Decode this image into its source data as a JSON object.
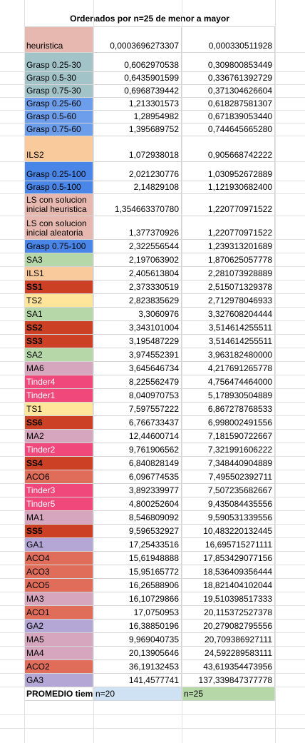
{
  "title": "Ordenados por n=25 de menor a mayor",
  "rows": [
    {
      "name": "heuristica",
      "v1": "0,0003696273307",
      "v2": "0,000330511928",
      "bg": "#e6b8af",
      "color": "#000000",
      "bold": false,
      "h": 36
    },
    {
      "name": "Grasp 0.25-30",
      "v1": "0,6062970538",
      "v2": "0,309800853449",
      "bg": "#a2c4c9",
      "color": "#000000",
      "bold": false,
      "h": 27
    },
    {
      "name": "Grasp 0.5-30",
      "v1": "0,6435901599",
      "v2": "0,336761392729",
      "bg": "#a2c4c9",
      "color": "#000000",
      "bold": false,
      "h": 18
    },
    {
      "name": "Grasp 0.75-30",
      "v1": "0,6968739442",
      "v2": "0,371304626604",
      "bg": "#a2c4c9",
      "color": "#000000",
      "bold": false,
      "h": 18
    },
    {
      "name": "Grasp 0.25-60",
      "v1": "1,213301573",
      "v2": "0,618287581307",
      "bg": "#6d9eeb",
      "color": "#000000",
      "bold": false,
      "h": 18
    },
    {
      "name": "Grasp 0.5-60",
      "v1": "1,28954982",
      "v2": "0,671839053440",
      "bg": "#6d9eeb",
      "color": "#000000",
      "bold": false,
      "h": 18
    },
    {
      "name": "Grasp 0.75-60",
      "v1": "1,395689752",
      "v2": "0,744645665280",
      "bg": "#6d9eeb",
      "color": "#000000",
      "bold": false,
      "h": 18
    },
    {
      "name": "ILS2",
      "v1": "1,072938018",
      "v2": "0,905668742222",
      "bg": "#f9cb9c",
      "color": "#000000",
      "bold": false,
      "h": 36
    },
    {
      "name": "Grasp 0.25-100",
      "v1": "2,021230776",
      "v2": "1,030952672889",
      "bg": "#4a86e8",
      "color": "#000000",
      "bold": false,
      "h": 27
    },
    {
      "name": "Grasp 0.5-100",
      "v1": "2,14829108",
      "v2": "1,121930682400",
      "bg": "#4a86e8",
      "color": "#000000",
      "bold": false,
      "h": 18
    },
    {
      "name": "LS con solucion inicial heuristica",
      "v1": "1,354663370780",
      "v2": "1,220770971522",
      "bg": "#e6b8af",
      "color": "#000000",
      "bold": false,
      "h": 31
    },
    {
      "name": "LS con solucion inicial aleatoria",
      "v1": "1,377370926",
      "v2": "1,220770971522",
      "bg": "#e6b8af",
      "color": "#000000",
      "bold": false,
      "h": 33
    },
    {
      "name": "Grasp 0.75-100",
      "v1": "2,322556544",
      "v2": "1,239313201689",
      "bg": "#4a86e8",
      "color": "#000000",
      "bold": false,
      "h": 19
    },
    {
      "name": "SA3",
      "v1": "2,197063902",
      "v2": "1,870625057778",
      "bg": "#b6d7a8",
      "color": "#000000",
      "bold": false,
      "h": 19
    },
    {
      "name": "ILS1",
      "v1": "2,405613804",
      "v2": "2,281073928889",
      "bg": "#f9cb9c",
      "color": "#000000",
      "bold": false,
      "h": 19
    },
    {
      "name": "SS1",
      "v1": "2,373330519",
      "v2": "2,515071329378",
      "bg": "#cc4125",
      "color": "#000000",
      "bold": true,
      "h": 19
    },
    {
      "name": "TS2",
      "v1": "2,823835629",
      "v2": "2,712978046933",
      "bg": "#ffe599",
      "color": "#000000",
      "bold": false,
      "h": 19
    },
    {
      "name": "SA1",
      "v1": "3,3060976",
      "v2": "3,327608204444",
      "bg": "#b6d7a8",
      "color": "#000000",
      "bold": false,
      "h": 19
    },
    {
      "name": "SS2",
      "v1": "3,343101004",
      "v2": "3,514614255511",
      "bg": "#cc4125",
      "color": "#000000",
      "bold": true,
      "h": 19
    },
    {
      "name": "SS3",
      "v1": "3,195487229",
      "v2": "3,514614255511",
      "bg": "#cc4125",
      "color": "#000000",
      "bold": true,
      "h": 19
    },
    {
      "name": "SA2",
      "v1": "3,974552391",
      "v2": "3,963182480000",
      "bg": "#b6d7a8",
      "color": "#000000",
      "bold": false,
      "h": 19
    },
    {
      "name": "MA6",
      "v1": "3,645646734",
      "v2": "4,217691265778",
      "bg": "#d5a6bd",
      "color": "#000000",
      "bold": false,
      "h": 19
    },
    {
      "name": "Tinder4",
      "v1": "8,225562479",
      "v2": "4,756474464000",
      "bg": "#f0487a",
      "color": "#ffffff",
      "bold": false,
      "h": 19
    },
    {
      "name": "Tinder1",
      "v1": "8,040970753",
      "v2": "5,178930504889",
      "bg": "#f0487a",
      "color": "#ffffff",
      "bold": false,
      "h": 19
    },
    {
      "name": "TS1",
      "v1": "7,597557222",
      "v2": "6,867278768533",
      "bg": "#ffe599",
      "color": "#000000",
      "bold": false,
      "h": 19
    },
    {
      "name": "SS6",
      "v1": "6,766733437",
      "v2": "6,998002491556",
      "bg": "#cc4125",
      "color": "#000000",
      "bold": true,
      "h": 19
    },
    {
      "name": "MA2",
      "v1": "12,44600714",
      "v2": "7,181590722667",
      "bg": "#d5a6bd",
      "color": "#000000",
      "bold": false,
      "h": 19
    },
    {
      "name": "Tinder2",
      "v1": "9,761906562",
      "v2": "7,321991606222",
      "bg": "#f0487a",
      "color": "#ffffff",
      "bold": false,
      "h": 19
    },
    {
      "name": "SS4",
      "v1": "6,840828149",
      "v2": "7,348440904889",
      "bg": "#cc4125",
      "color": "#000000",
      "bold": true,
      "h": 19
    },
    {
      "name": "ACO6",
      "v1": "6,096774535",
      "v2": "7,495502392711",
      "bg": "#e06c5a",
      "color": "#000000",
      "bold": false,
      "h": 19
    },
    {
      "name": "Tinder3",
      "v1": "3,892339977",
      "v2": "7,507235682667",
      "bg": "#f0487a",
      "color": "#ffffff",
      "bold": false,
      "h": 19
    },
    {
      "name": "Tinder5",
      "v1": "4,800252604",
      "v2": "9,435084435556",
      "bg": "#f0487a",
      "color": "#ffffff",
      "bold": false,
      "h": 19
    },
    {
      "name": "MA1",
      "v1": "8,546809092",
      "v2": "9,590531339556",
      "bg": "#d5a6bd",
      "color": "#000000",
      "bold": false,
      "h": 19
    },
    {
      "name": "SS5",
      "v1": "9,596532927",
      "v2": "10,483220132445",
      "bg": "#cc4125",
      "color": "#000000",
      "bold": true,
      "h": 19
    },
    {
      "name": "GA1",
      "v1": "17,25433516",
      "v2": "16,695715271111",
      "bg": "#b4a7d6",
      "color": "#000000",
      "bold": false,
      "h": 19
    },
    {
      "name": "ACO4",
      "v1": "15,61948888",
      "v2": "17,853429077156",
      "bg": "#e06c5a",
      "color": "#000000",
      "bold": false,
      "h": 19
    },
    {
      "name": "ACO3",
      "v1": "15,95165772",
      "v2": "18,536409356444",
      "bg": "#e06c5a",
      "color": "#000000",
      "bold": false,
      "h": 19
    },
    {
      "name": "ACO5",
      "v1": "16,26588906",
      "v2": "18,821404102044",
      "bg": "#e06c5a",
      "color": "#000000",
      "bold": false,
      "h": 19
    },
    {
      "name": "MA3",
      "v1": "16,10729866",
      "v2": "19,510398517333",
      "bg": "#d5a6bd",
      "color": "#000000",
      "bold": false,
      "h": 19
    },
    {
      "name": "ACO1",
      "v1": "17,0750953",
      "v2": "20,115372527378",
      "bg": "#e06c5a",
      "color": "#000000",
      "bold": false,
      "h": 19
    },
    {
      "name": "GA2",
      "v1": "16,38850196",
      "v2": "20,279082795556",
      "bg": "#b4a7d6",
      "color": "#000000",
      "bold": false,
      "h": 19
    },
    {
      "name": "MA5",
      "v1": "9,969040735",
      "v2": "20,709386927111",
      "bg": "#d5a6bd",
      "color": "#000000",
      "bold": false,
      "h": 19
    },
    {
      "name": "MA4",
      "v1": "20,13905646",
      "v2": "24,592289583111",
      "bg": "#d5a6bd",
      "color": "#000000",
      "bold": false,
      "h": 19
    },
    {
      "name": "ACO2",
      "v1": "36,19132453",
      "v2": "43,619354473956",
      "bg": "#e06c5a",
      "color": "#000000",
      "bold": false,
      "h": 19
    },
    {
      "name": "GA3",
      "v1": "141,4577741",
      "v2": "137,339847377778",
      "bg": "#b4a7d6",
      "color": "#000000",
      "bold": false,
      "h": 19
    }
  ],
  "footer": {
    "label": "PROMEDIO tiem",
    "v1": "n=20",
    "v2": "n=25"
  }
}
